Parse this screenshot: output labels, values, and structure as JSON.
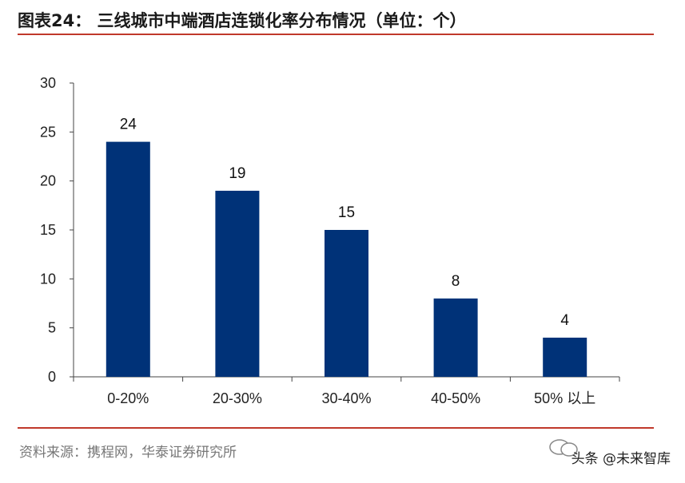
{
  "title": "图表24：  三线城市中端酒店连锁化率分布情况（单位：个）",
  "source": "资料来源：携程网，华泰证券研究所",
  "watermark": "头条 @未来智库",
  "colors": {
    "bar": "#003278",
    "rule": "#c0392b",
    "axis": "#444444"
  },
  "chart_data": {
    "type": "bar",
    "title": "",
    "xlabel": "",
    "ylabel": "",
    "categories": [
      "0-20%",
      "20-30%",
      "30-40%",
      "40-50%",
      "50% 以上"
    ],
    "values": [
      24,
      19,
      15,
      8,
      4
    ],
    "data_labels": [
      "24",
      "19",
      "15",
      "8",
      "4"
    ],
    "ylim": [
      0,
      30
    ],
    "yticks": [
      "0",
      "5",
      "10",
      "15",
      "20",
      "25",
      "30"
    ],
    "grid": false,
    "legend": "none"
  }
}
